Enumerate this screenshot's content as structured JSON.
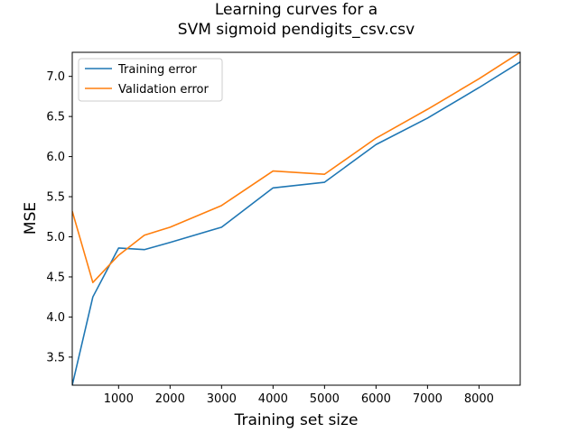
{
  "chart_data": {
    "type": "line",
    "title": [
      "Learning curves for a",
      "SVM sigmoid pendigits_csv.csv"
    ],
    "xlabel": "Training set size",
    "ylabel": "MSE",
    "xlim": [
      100,
      8800
    ],
    "ylim": [
      3.15,
      7.3
    ],
    "xticks": [
      1000,
      2000,
      3000,
      4000,
      5000,
      6000,
      7000,
      8000
    ],
    "yticks": [
      3.5,
      4.0,
      4.5,
      5.0,
      5.5,
      6.0,
      6.5,
      7.0
    ],
    "xtick_labels": [
      "1000",
      "2000",
      "3000",
      "4000",
      "5000",
      "6000",
      "7000",
      "8000"
    ],
    "ytick_labels": [
      "3.5",
      "4.0",
      "4.5",
      "5.0",
      "5.5",
      "6.0",
      "6.5",
      "7.0"
    ],
    "grid": false,
    "legend_position": "top-left",
    "series": [
      {
        "name": "Training error",
        "color": "#1f77b4",
        "x": [
          100,
          500,
          1000,
          1500,
          2000,
          3000,
          4000,
          5000,
          6000,
          7000,
          8000,
          8800
        ],
        "y": [
          3.15,
          4.25,
          4.86,
          4.84,
          4.93,
          5.12,
          5.61,
          5.68,
          6.15,
          6.48,
          6.86,
          7.18
        ]
      },
      {
        "name": "Validation error",
        "color": "#ff7f0e",
        "x": [
          100,
          500,
          1000,
          1500,
          2000,
          3000,
          4000,
          5000,
          6000,
          7000,
          8000,
          8800
        ],
        "y": [
          5.32,
          4.43,
          4.77,
          5.02,
          5.12,
          5.39,
          5.82,
          5.78,
          6.23,
          6.59,
          6.97,
          7.3
        ]
      }
    ]
  }
}
